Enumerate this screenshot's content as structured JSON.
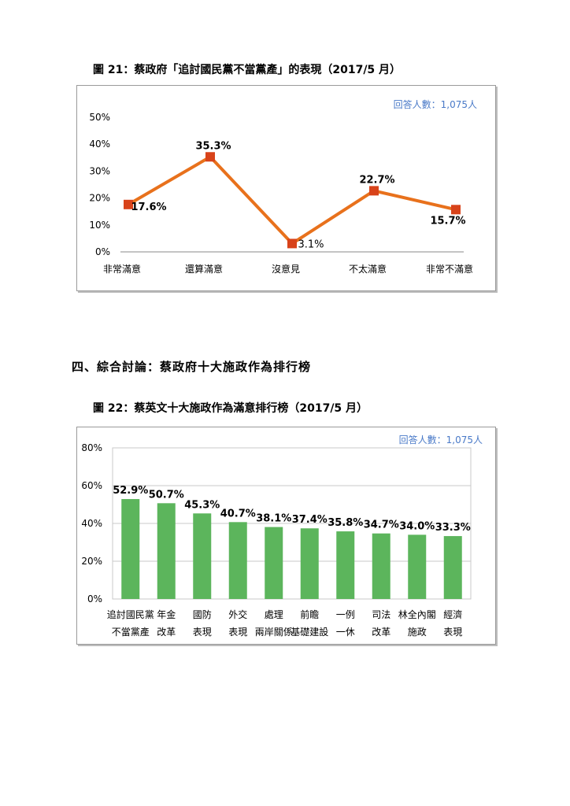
{
  "chart1": {
    "caption": "圖 21：蔡政府「追討國民黨不當黨產」的表現（2017/5 月）",
    "respondents": "回答人數：1,075人",
    "chart_data": {
      "type": "line",
      "categories": [
        "非常滿意",
        "還算滿意",
        "沒意見",
        "不太滿意",
        "非常不滿意"
      ],
      "values": [
        17.6,
        35.3,
        3.1,
        22.7,
        15.7
      ],
      "data_labels": [
        "17.6%",
        "35.3%",
        "3.1%",
        "22.7%",
        "15.7%"
      ],
      "yticks": [
        "0%",
        "10%",
        "20%",
        "30%",
        "40%",
        "50%"
      ],
      "ylim": [
        0,
        50
      ],
      "color": "#e8711c",
      "marker_color": "#d8431a"
    }
  },
  "section_heading": "四、綜合討論：蔡政府十大施政作為排行榜",
  "chart2": {
    "caption": "圖 22：蔡英文十大施政作為滿意排行榜（2017/5 月）",
    "respondents": "回答人數：1,075人",
    "chart_data": {
      "type": "bar",
      "categories": [
        [
          "追討國民黨",
          "不當黨產"
        ],
        [
          "年金",
          "改革"
        ],
        [
          "國防",
          "表現"
        ],
        [
          "外交",
          "表現"
        ],
        [
          "處理",
          "兩岸關係"
        ],
        [
          "前瞻",
          "基礎建設"
        ],
        [
          "一例",
          "一休"
        ],
        [
          "司法",
          "改革"
        ],
        [
          "林全內閣",
          "施政"
        ],
        [
          "經濟",
          "表現"
        ]
      ],
      "values": [
        52.9,
        50.7,
        45.3,
        40.7,
        38.1,
        37.4,
        35.8,
        34.7,
        34.0,
        33.3
      ],
      "data_labels": [
        "52.9%",
        "50.7%",
        "45.3%",
        "40.7%",
        "38.1%",
        "37.4%",
        "35.8%",
        "34.7%",
        "34.0%",
        "33.3%"
      ],
      "yticks": [
        "0%",
        "20%",
        "40%",
        "60%",
        "80%"
      ],
      "ylim": [
        0,
        80
      ],
      "color": "#5cb55c",
      "grid": true
    }
  }
}
